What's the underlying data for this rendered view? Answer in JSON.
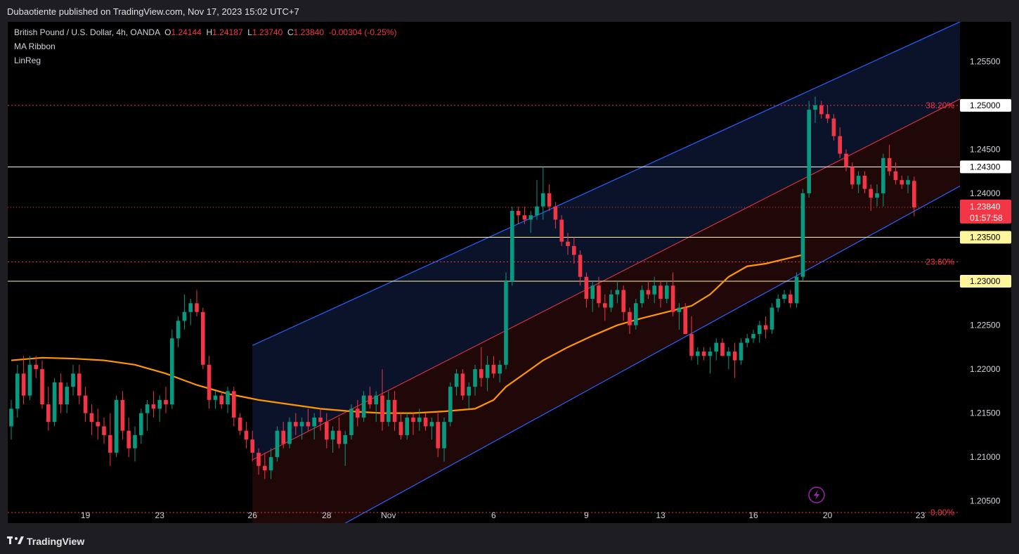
{
  "header": {
    "published": "Dubaotiente published on TradingView.com, Nov 17, 2023 15:02 UTC+7"
  },
  "legend": {
    "symbol": "British Pound / U.S. Dollar, 4h, OANDA",
    "o_label": "O",
    "o_value": "1.24144",
    "h_label": "H",
    "h_value": "1.24187",
    "l_label": "L",
    "l_value": "1.23740",
    "c_label": "C",
    "c_value": "1.23840",
    "change": "-0.00304 (-0.25%)",
    "indicator1": "MA Ribbon",
    "indicator2": "LinReg"
  },
  "footer": {
    "brand": "TradingView"
  },
  "chart_data": {
    "type": "candlestick",
    "symbol": "GBPUSD",
    "interval": "4h",
    "ylim": [
      1.2025,
      1.2595
    ],
    "y_ticks": [
      "1.25500",
      "1.25000",
      "1.24500",
      "1.24000",
      "1.22500",
      "1.22000",
      "1.21500",
      "1.21000",
      "1.20500"
    ],
    "x_ticks": [
      {
        "label": "19",
        "bar": 12
      },
      {
        "label": "23",
        "bar": 24
      },
      {
        "label": "26",
        "bar": 39
      },
      {
        "label": "28",
        "bar": 51
      },
      {
        "label": "Nov",
        "bar": 61
      },
      {
        "label": "6",
        "bar": 78
      },
      {
        "label": "9",
        "bar": 93
      },
      {
        "label": "13",
        "bar": 105
      },
      {
        "label": "16",
        "bar": 120
      },
      {
        "label": "20",
        "bar": 132
      },
      {
        "label": "23",
        "bar": 147
      }
    ],
    "current_price": "1.23840",
    "countdown": "01:57:58",
    "horizontal_levels": [
      {
        "price": 1.25,
        "label": "1.25000",
        "style": "dotted",
        "color": "#f23645"
      },
      {
        "price": 1.243,
        "label": "1.24300",
        "style": "solid",
        "color": "#ffffff"
      },
      {
        "price": 1.235,
        "label": "1.23500",
        "style": "solid",
        "color": "#fff59d"
      },
      {
        "price": 1.23,
        "label": "1.23000",
        "style": "solid",
        "color": "#fff59d"
      },
      {
        "price": 1.2322,
        "label": "",
        "style": "dotted",
        "color": "#f23645"
      },
      {
        "price": 1.2037,
        "label": "",
        "style": "dotted",
        "color": "#f23645"
      }
    ],
    "fib_labels": [
      {
        "price": 1.25,
        "text": "38.20%"
      },
      {
        "price": 1.2322,
        "text": "23.60%"
      },
      {
        "price": 1.2037,
        "text": "0.00%"
      }
    ],
    "linreg_channel": {
      "start_bar": 39,
      "end_bar": 150,
      "upper": [
        1.2227,
        1.2584
      ],
      "mid": [
        1.2097,
        1.2495
      ],
      "lower": [
        1.1967,
        1.2395
      ]
    },
    "ohlc": [
      [
        1.2135,
        1.2165,
        1.212,
        1.2155
      ],
      [
        1.2155,
        1.2205,
        1.2145,
        1.2195
      ],
      [
        1.2195,
        1.2215,
        1.216,
        1.217
      ],
      [
        1.217,
        1.2215,
        1.2165,
        1.2205
      ],
      [
        1.2205,
        1.2215,
        1.219,
        1.22
      ],
      [
        1.22,
        1.221,
        1.2155,
        1.216
      ],
      [
        1.216,
        1.218,
        1.213,
        1.214
      ],
      [
        1.214,
        1.219,
        1.2135,
        1.2185
      ],
      [
        1.2185,
        1.2195,
        1.215,
        1.216
      ],
      [
        1.216,
        1.2185,
        1.215,
        1.218
      ],
      [
        1.218,
        1.2205,
        1.217,
        1.2195
      ],
      [
        1.2195,
        1.2205,
        1.216,
        1.217
      ],
      [
        1.217,
        1.218,
        1.214,
        1.215
      ],
      [
        1.215,
        1.216,
        1.2125,
        1.214
      ],
      [
        1.214,
        1.2155,
        1.212,
        1.2135
      ],
      [
        1.2135,
        1.2145,
        1.2115,
        1.2125
      ],
      [
        1.2125,
        1.215,
        1.209,
        1.2105
      ],
      [
        1.2105,
        1.217,
        1.21,
        1.2165
      ],
      [
        1.2165,
        1.2175,
        1.212,
        1.213
      ],
      [
        1.213,
        1.2145,
        1.21,
        1.211
      ],
      [
        1.211,
        1.2135,
        1.2095,
        1.2125
      ],
      [
        1.2125,
        1.2155,
        1.2115,
        1.215
      ],
      [
        1.215,
        1.2165,
        1.213,
        1.216
      ],
      [
        1.216,
        1.2175,
        1.2145,
        1.2155
      ],
      [
        1.2155,
        1.217,
        1.214,
        1.2165
      ],
      [
        1.2165,
        1.218,
        1.215,
        1.216
      ],
      [
        1.216,
        1.2245,
        1.2155,
        1.2235
      ],
      [
        1.2235,
        1.226,
        1.2225,
        1.2255
      ],
      [
        1.2255,
        1.2285,
        1.2245,
        1.2265
      ],
      [
        1.2265,
        1.228,
        1.225,
        1.2275
      ],
      [
        1.2275,
        1.229,
        1.226,
        1.2265
      ],
      [
        1.2265,
        1.227,
        1.22,
        1.2205
      ],
      [
        1.2205,
        1.2215,
        1.2155,
        1.2165
      ],
      [
        1.2165,
        1.2175,
        1.2155,
        1.217
      ],
      [
        1.217,
        1.2175,
        1.2155,
        1.216
      ],
      [
        1.216,
        1.218,
        1.215,
        1.2175
      ],
      [
        1.2175,
        1.218,
        1.2135,
        1.2145
      ],
      [
        1.2145,
        1.215,
        1.2125,
        1.213
      ],
      [
        1.213,
        1.214,
        1.211,
        1.212
      ],
      [
        1.212,
        1.213,
        1.2095,
        1.2105
      ],
      [
        1.2105,
        1.211,
        1.208,
        1.209
      ],
      [
        1.209,
        1.2105,
        1.2075,
        1.2085
      ],
      [
        1.2085,
        1.211,
        1.2075,
        1.21
      ],
      [
        1.21,
        1.2135,
        1.2095,
        1.213
      ],
      [
        1.213,
        1.214,
        1.211,
        1.2115
      ],
      [
        1.2115,
        1.2145,
        1.211,
        1.214
      ],
      [
        1.214,
        1.215,
        1.2125,
        1.2135
      ],
      [
        1.2135,
        1.2145,
        1.212,
        1.214
      ],
      [
        1.214,
        1.2155,
        1.213,
        1.2135
      ],
      [
        1.2135,
        1.215,
        1.212,
        1.2145
      ],
      [
        1.2145,
        1.2155,
        1.213,
        1.214
      ],
      [
        1.214,
        1.215,
        1.211,
        1.212
      ],
      [
        1.212,
        1.2135,
        1.2105,
        1.213
      ],
      [
        1.213,
        1.2145,
        1.211,
        1.2115
      ],
      [
        1.2115,
        1.213,
        1.209,
        1.2125
      ],
      [
        1.2125,
        1.216,
        1.212,
        1.2155
      ],
      [
        1.2155,
        1.2165,
        1.2135,
        1.2145
      ],
      [
        1.2145,
        1.2175,
        1.214,
        1.217
      ],
      [
        1.217,
        1.218,
        1.2155,
        1.216
      ],
      [
        1.216,
        1.2175,
        1.214,
        1.217
      ],
      [
        1.217,
        1.22,
        1.213,
        1.214
      ],
      [
        1.214,
        1.2175,
        1.2135,
        1.2165
      ],
      [
        1.2165,
        1.2175,
        1.213,
        1.214
      ],
      [
        1.214,
        1.215,
        1.212,
        1.2125
      ],
      [
        1.2125,
        1.215,
        1.212,
        1.2145
      ],
      [
        1.2145,
        1.215,
        1.2125,
        1.214
      ],
      [
        1.214,
        1.2155,
        1.213,
        1.2145
      ],
      [
        1.2145,
        1.215,
        1.213,
        1.2135
      ],
      [
        1.2135,
        1.2145,
        1.212,
        1.214
      ],
      [
        1.214,
        1.215,
        1.21,
        1.211
      ],
      [
        1.211,
        1.2145,
        1.2095,
        1.214
      ],
      [
        1.214,
        1.2185,
        1.2135,
        1.218
      ],
      [
        1.218,
        1.22,
        1.217,
        1.2195
      ],
      [
        1.2195,
        1.22,
        1.2165,
        1.217
      ],
      [
        1.217,
        1.2185,
        1.2155,
        1.218
      ],
      [
        1.218,
        1.2205,
        1.217,
        1.22
      ],
      [
        1.22,
        1.2225,
        1.218,
        1.219
      ],
      [
        1.219,
        1.2215,
        1.2175,
        1.2205
      ],
      [
        1.2205,
        1.2215,
        1.219,
        1.2195
      ],
      [
        1.2195,
        1.221,
        1.2185,
        1.2205
      ],
      [
        1.2205,
        1.231,
        1.22,
        1.23
      ],
      [
        1.23,
        1.2385,
        1.2295,
        1.238
      ],
      [
        1.238,
        1.2385,
        1.2365,
        1.2375
      ],
      [
        1.2375,
        1.2385,
        1.2365,
        1.237
      ],
      [
        1.237,
        1.238,
        1.2355,
        1.2375
      ],
      [
        1.2375,
        1.2415,
        1.237,
        1.2385
      ],
      [
        1.2385,
        1.243,
        1.237,
        1.24
      ],
      [
        1.24,
        1.241,
        1.238,
        1.2385
      ],
      [
        1.2385,
        1.239,
        1.236,
        1.237
      ],
      [
        1.237,
        1.2375,
        1.234,
        1.2345
      ],
      [
        1.2345,
        1.2355,
        1.233,
        1.234
      ],
      [
        1.234,
        1.235,
        1.232,
        1.233
      ],
      [
        1.233,
        1.2335,
        1.2295,
        1.2305
      ],
      [
        1.2305,
        1.231,
        1.227,
        1.228
      ],
      [
        1.228,
        1.23,
        1.2265,
        1.2295
      ],
      [
        1.2295,
        1.2305,
        1.227,
        1.2275
      ],
      [
        1.2275,
        1.2285,
        1.2255,
        1.227
      ],
      [
        1.227,
        1.229,
        1.2265,
        1.2285
      ],
      [
        1.2285,
        1.23,
        1.2275,
        1.229
      ],
      [
        1.229,
        1.2295,
        1.2255,
        1.2265
      ],
      [
        1.2265,
        1.227,
        1.224,
        1.225
      ],
      [
        1.225,
        1.228,
        1.2245,
        1.2275
      ],
      [
        1.2275,
        1.2295,
        1.227,
        1.229
      ],
      [
        1.229,
        1.23,
        1.228,
        1.2285
      ],
      [
        1.2285,
        1.2305,
        1.2275,
        1.2295
      ],
      [
        1.2295,
        1.23,
        1.227,
        1.228
      ],
      [
        1.228,
        1.23,
        1.2275,
        1.2295
      ],
      [
        1.2295,
        1.231,
        1.226,
        1.2265
      ],
      [
        1.2265,
        1.2275,
        1.2245,
        1.227
      ],
      [
        1.227,
        1.2275,
        1.224,
        1.224
      ],
      [
        1.224,
        1.226,
        1.221,
        1.2215
      ],
      [
        1.2215,
        1.2225,
        1.2205,
        1.222
      ],
      [
        1.222,
        1.2225,
        1.221,
        1.2215
      ],
      [
        1.2215,
        1.2225,
        1.2195,
        1.222
      ],
      [
        1.222,
        1.2235,
        1.221,
        1.223
      ],
      [
        1.223,
        1.2235,
        1.2215,
        1.2215
      ],
      [
        1.2215,
        1.2225,
        1.22,
        1.222
      ],
      [
        1.222,
        1.223,
        1.219,
        1.221
      ],
      [
        1.221,
        1.2235,
        1.2205,
        1.223
      ],
      [
        1.223,
        1.224,
        1.2225,
        1.2235
      ],
      [
        1.2235,
        1.2245,
        1.223,
        1.224
      ],
      [
        1.224,
        1.2255,
        1.223,
        1.225
      ],
      [
        1.225,
        1.226,
        1.2235,
        1.2245
      ],
      [
        1.2245,
        1.2275,
        1.224,
        1.227
      ],
      [
        1.227,
        1.2285,
        1.2265,
        1.228
      ],
      [
        1.228,
        1.229,
        1.2275,
        1.2285
      ],
      [
        1.2285,
        1.229,
        1.227,
        1.2275
      ],
      [
        1.2275,
        1.231,
        1.227,
        1.2305
      ],
      [
        1.2305,
        1.2405,
        1.23,
        1.24
      ],
      [
        1.24,
        1.2505,
        1.2395,
        1.2495
      ],
      [
        1.2495,
        1.251,
        1.248,
        1.25
      ],
      [
        1.25,
        1.2505,
        1.2485,
        1.249
      ],
      [
        1.249,
        1.25,
        1.248,
        1.2485
      ],
      [
        1.2485,
        1.249,
        1.246,
        1.2465
      ],
      [
        1.2465,
        1.2475,
        1.244,
        1.2445
      ],
      [
        1.2445,
        1.245,
        1.2425,
        1.243
      ],
      [
        1.243,
        1.2435,
        1.2405,
        1.241
      ],
      [
        1.241,
        1.2425,
        1.24,
        1.242
      ],
      [
        1.242,
        1.2425,
        1.24,
        1.2405
      ],
      [
        1.2405,
        1.241,
        1.238,
        1.2395
      ],
      [
        1.2395,
        1.241,
        1.2385,
        1.24
      ],
      [
        1.24,
        1.2445,
        1.2385,
        1.244
      ],
      [
        1.244,
        1.2455,
        1.242,
        1.2425
      ],
      [
        1.2425,
        1.2435,
        1.241,
        1.2415
      ],
      [
        1.2415,
        1.242,
        1.2405,
        1.241
      ],
      [
        1.241,
        1.242,
        1.24,
        1.2415
      ],
      [
        1.2414,
        1.2419,
        1.2374,
        1.2384
      ]
    ],
    "ma_series": [
      [
        0,
        1.221
      ],
      [
        5,
        1.2213
      ],
      [
        10,
        1.2212
      ],
      [
        15,
        1.221
      ],
      [
        20,
        1.2205
      ],
      [
        25,
        1.2195
      ],
      [
        30,
        1.2182
      ],
      [
        35,
        1.2172
      ],
      [
        40,
        1.2165
      ],
      [
        45,
        1.216
      ],
      [
        50,
        1.2155
      ],
      [
        55,
        1.2152
      ],
      [
        60,
        1.215
      ],
      [
        65,
        1.215
      ],
      [
        70,
        1.2152
      ],
      [
        75,
        1.2155
      ],
      [
        78,
        1.2165
      ],
      [
        80,
        1.218
      ],
      [
        83,
        1.2195
      ],
      [
        86,
        1.221
      ],
      [
        90,
        1.2225
      ],
      [
        94,
        1.2238
      ],
      [
        98,
        1.225
      ],
      [
        102,
        1.2258
      ],
      [
        106,
        1.2265
      ],
      [
        110,
        1.2272
      ],
      [
        113,
        1.2285
      ],
      [
        116,
        1.2305
      ],
      [
        119,
        1.2317
      ],
      [
        122,
        1.232
      ],
      [
        125,
        1.2325
      ],
      [
        128,
        1.233
      ]
    ]
  }
}
